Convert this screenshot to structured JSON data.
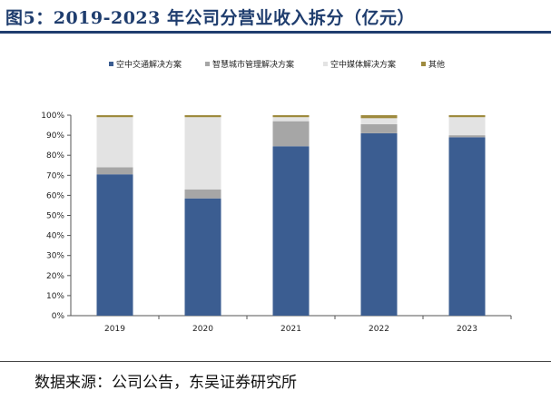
{
  "figure_title": "图5：2019-2023 年公司分营业收入拆分（亿元）",
  "source": "数据来源：公司公告，东吴证券研究所",
  "chart_data": {
    "type": "bar",
    "stacked": true,
    "categories": [
      "2019",
      "2020",
      "2021",
      "2022",
      "2023"
    ],
    "series": [
      {
        "name": "空中交通解决方案",
        "color": "#3b5d91",
        "values": [
          70.5,
          58.5,
          84.5,
          91.0,
          89.0
        ]
      },
      {
        "name": "智慧城市管理解决方案",
        "color": "#a6a6a6",
        "values": [
          3.5,
          4.5,
          12.5,
          4.5,
          1.0
        ]
      },
      {
        "name": "空中媒体解决方案",
        "color": "#e3e3e3",
        "values": [
          25.0,
          36.0,
          2.0,
          3.0,
          9.0
        ]
      },
      {
        "name": "其他",
        "color": "#9e8a3e",
        "values": [
          1.0,
          1.0,
          1.0,
          1.5,
          1.0
        ]
      }
    ],
    "yticks": [
      "0%",
      "10%",
      "20%",
      "30%",
      "40%",
      "50%",
      "60%",
      "70%",
      "80%",
      "90%",
      "100%"
    ],
    "ylim": [
      0,
      100
    ],
    "legend_position": "top",
    "grid": false
  }
}
